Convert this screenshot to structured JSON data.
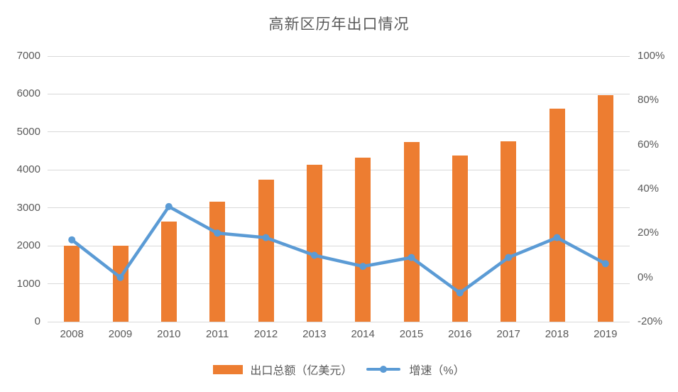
{
  "title": "高新区历年出口情况",
  "colors": {
    "bar": "#ED7D31",
    "line": "#5B9BD5",
    "grid": "#D9D9D9",
    "text": "#595959"
  },
  "chart_data": {
    "type": "bar+line combo",
    "title": "高新区历年出口情况",
    "categories": [
      "2008",
      "2009",
      "2010",
      "2011",
      "2012",
      "2013",
      "2014",
      "2015",
      "2016",
      "2017",
      "2018",
      "2019"
    ],
    "series": [
      {
        "name": "出口总额（亿美元）",
        "type": "bar",
        "axis": "left",
        "color": "#ED7D31",
        "values": [
          2000,
          2000,
          2640,
          3170,
          3740,
          4130,
          4330,
          4730,
          4380,
          4760,
          5620,
          5970
        ]
      },
      {
        "name": "增速（%）",
        "type": "line",
        "axis": "right",
        "color": "#5B9BD5",
        "marker": "circle",
        "values": [
          17,
          0,
          32,
          20,
          18,
          10,
          5,
          9,
          -7,
          9,
          18,
          6.2
        ]
      }
    ],
    "left_axis": {
      "min": 0,
      "max": 7000,
      "step": 1000,
      "tick_labels": [
        "0",
        "1000",
        "2000",
        "3000",
        "4000",
        "5000",
        "6000",
        "7000"
      ]
    },
    "right_axis": {
      "min": -20,
      "max": 100,
      "step": 20,
      "tick_labels": [
        "-20%",
        "0%",
        "20%",
        "40%",
        "60%",
        "80%",
        "100%"
      ]
    },
    "grid": true,
    "legend_position": "bottom"
  },
  "legend": {
    "bar_label": "出口总额（亿美元）",
    "line_label": "增速（%）"
  }
}
